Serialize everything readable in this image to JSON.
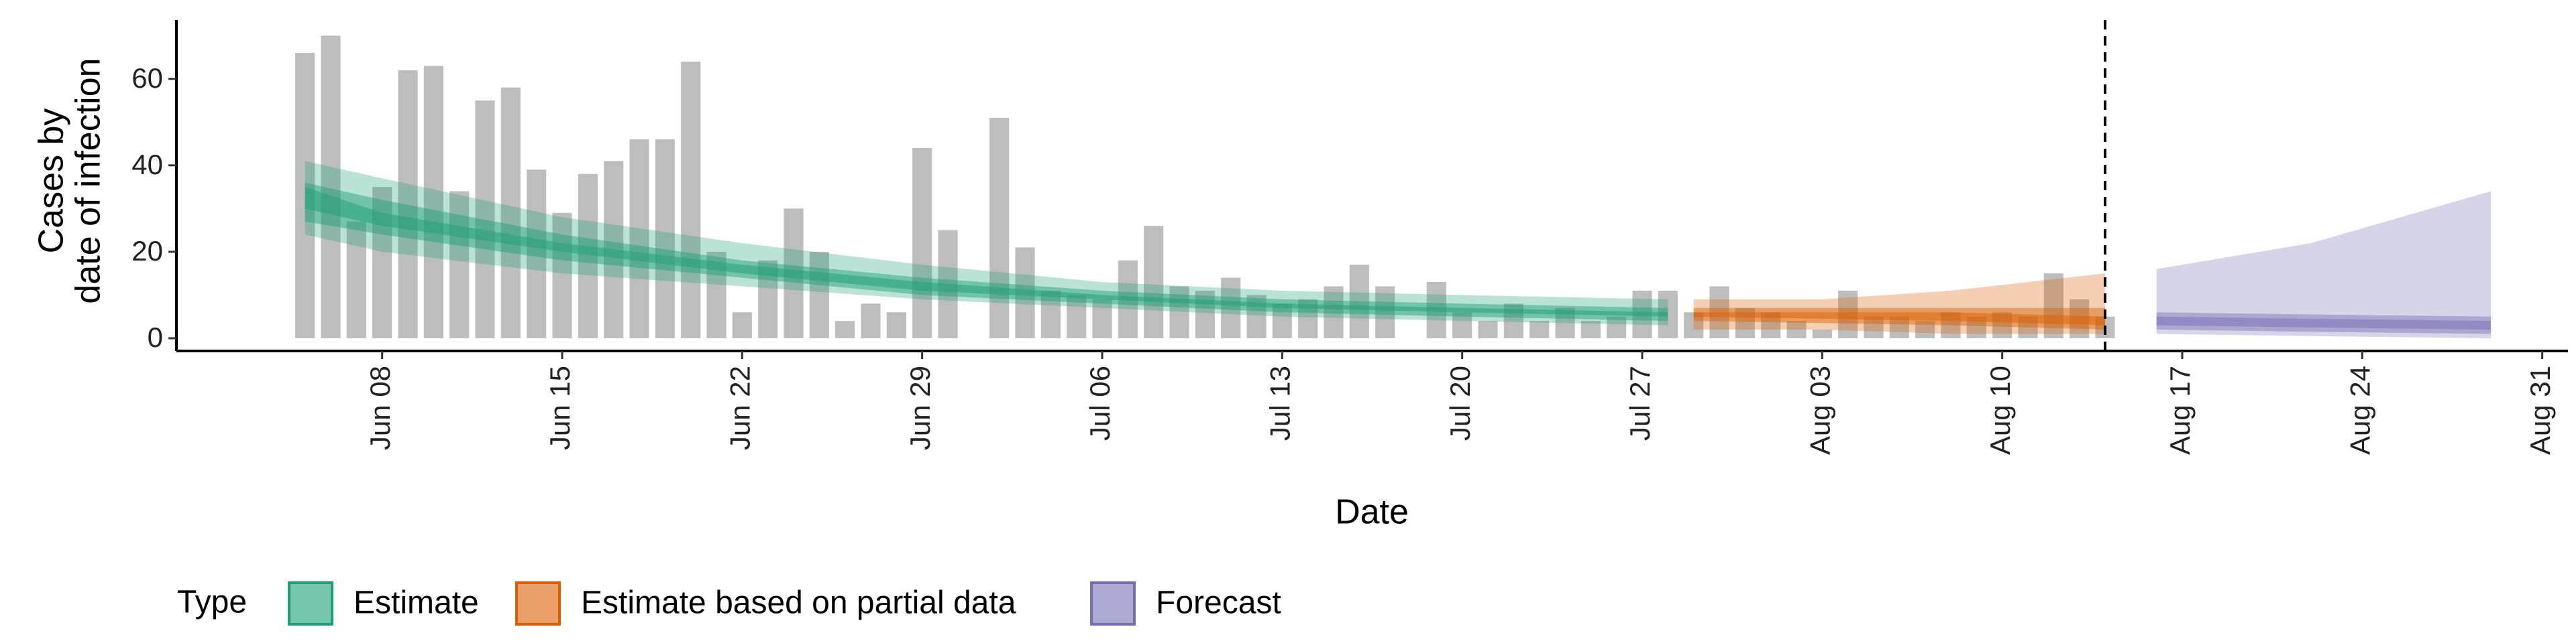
{
  "chart_data": {
    "type": "bar-ribbon",
    "x_label": "Date",
    "y_label": [
      "Cases by",
      "date of infection"
    ],
    "legend_title": "Type",
    "xlim": [
      "May 31",
      "Sep 01"
    ],
    "xticks": [
      "Jun 08",
      "Jun 15",
      "Jun 22",
      "Jun 29",
      "Jul 06",
      "Jul 13",
      "Jul 20",
      "Jul 27",
      "Aug 03",
      "Aug 10",
      "Aug 17",
      "Aug 24",
      "Aug 31"
    ],
    "ylim": [
      -2.95,
      73.6
    ],
    "yticks": [
      0,
      20,
      40,
      60
    ],
    "vline_x": "Aug 14",
    "bars": {
      "color": "#bdbdbd",
      "x": [
        "Jun 05",
        "Jun 06",
        "Jun 07",
        "Jun 08",
        "Jun 09",
        "Jun 10",
        "Jun 11",
        "Jun 12",
        "Jun 13",
        "Jun 14",
        "Jun 15",
        "Jun 16",
        "Jun 17",
        "Jun 18",
        "Jun 19",
        "Jun 20",
        "Jun 21",
        "Jun 22",
        "Jun 23",
        "Jun 24",
        "Jun 25",
        "Jun 26",
        "Jun 27",
        "Jun 28",
        "Jun 29",
        "Jun 30",
        "Jul 01",
        "Jul 02",
        "Jul 03",
        "Jul 04",
        "Jul 05",
        "Jul 06",
        "Jul 07",
        "Jul 08",
        "Jul 09",
        "Jul 10",
        "Jul 11",
        "Jul 12",
        "Jul 13",
        "Jul 14",
        "Jul 15",
        "Jul 16",
        "Jul 17",
        "Jul 18",
        "Jul 19",
        "Jul 20",
        "Jul 21",
        "Jul 22",
        "Jul 23",
        "Jul 24",
        "Jul 25",
        "Jul 26",
        "Jul 27",
        "Jul 28",
        "Jul 29",
        "Jul 30",
        "Jul 31",
        "Aug 01",
        "Aug 02",
        "Aug 03",
        "Aug 04",
        "Aug 05",
        "Aug 06",
        "Aug 07",
        "Aug 08",
        "Aug 09",
        "Aug 10",
        "Aug 11",
        "Aug 12",
        "Aug 13",
        "Aug 14"
      ],
      "values": [
        66,
        70,
        27,
        35,
        62,
        63,
        34,
        55,
        58,
        39,
        29,
        38,
        41,
        46,
        46,
        64,
        20,
        6,
        18,
        30,
        20,
        4,
        8,
        6,
        44,
        25,
        0,
        51,
        21,
        11,
        10,
        9,
        18,
        26,
        12,
        11,
        14,
        10,
        8,
        9,
        12,
        17,
        12,
        0,
        13,
        6,
        4,
        8,
        4,
        7,
        4,
        5,
        11,
        11,
        6,
        12,
        7,
        6,
        4,
        2,
        11,
        5,
        5,
        4,
        6,
        5,
        6,
        5,
        15,
        9,
        5
      ]
    },
    "series": [
      {
        "name": "Estimate",
        "color": "#1b9e77",
        "x": [
          "Jun 05",
          "Jun 08",
          "Jun 15",
          "Jun 22",
          "Jun 29",
          "Jul 06",
          "Jul 13",
          "Jul 20",
          "Jul 28"
        ],
        "lower_90": [
          24,
          20,
          15,
          12,
          9,
          7,
          5,
          4,
          3
        ],
        "upper_90": [
          41,
          37,
          28,
          22,
          17,
          13,
          11,
          10,
          9
        ],
        "lower_50": [
          27,
          24,
          18,
          14,
          10,
          8,
          6,
          5,
          4
        ],
        "upper_50": [
          36,
          32,
          24,
          18,
          14,
          11,
          9,
          8,
          7
        ],
        "lower_20": [
          30,
          26,
          20,
          15,
          11,
          9,
          7,
          6,
          5
        ],
        "upper_20": [
          35,
          29,
          22,
          17,
          13,
          10,
          8,
          7,
          6
        ]
      },
      {
        "name": "Estimate based on partial data",
        "color": "#d95f02",
        "x": [
          "Jul 29",
          "Aug 03",
          "Aug 08",
          "Aug 14"
        ],
        "lower_90": [
          2,
          2,
          1,
          1
        ],
        "upper_90": [
          9,
          9,
          11,
          15
        ],
        "lower_50": [
          4,
          3.5,
          3,
          2
        ],
        "upper_50": [
          7,
          7,
          7,
          7
        ],
        "lower_20": [
          5,
          4.5,
          4,
          3
        ],
        "upper_20": [
          6,
          6,
          6,
          5
        ]
      },
      {
        "name": "Forecast",
        "color": "#7570b3",
        "x": [
          "Aug 16",
          "Aug 22",
          "Aug 29"
        ],
        "lower_90": [
          1,
          0.5,
          0
        ],
        "upper_90": [
          16,
          22,
          34
        ],
        "lower_50": [
          2,
          1.5,
          1
        ],
        "upper_50": [
          6,
          5.5,
          5
        ],
        "lower_20": [
          3,
          2.5,
          2
        ],
        "upper_20": [
          5,
          4.5,
          4
        ]
      }
    ]
  }
}
